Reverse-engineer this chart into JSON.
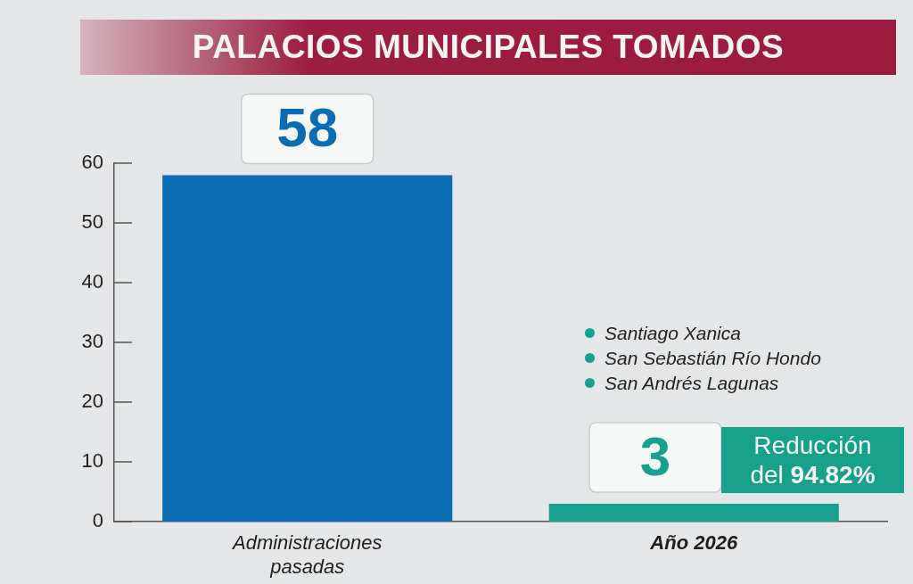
{
  "chart_data": {
    "type": "bar",
    "title": "PALACIOS MUNICIPALES TOMADOS",
    "categories": [
      "Administraciones pasadas",
      "Año 2026"
    ],
    "values": [
      58,
      3
    ],
    "colors": [
      "#0a6db3",
      "#17a08a"
    ],
    "ylim": [
      0,
      60
    ],
    "yticks": [
      0,
      10,
      20,
      30,
      40,
      50,
      60
    ],
    "data_labels": true,
    "annotations": [
      "Santiago Xanica",
      "San Sebastián Río Hondo",
      "San Andrés Lagunas",
      "Reducción del 94.82%"
    ]
  }
}
